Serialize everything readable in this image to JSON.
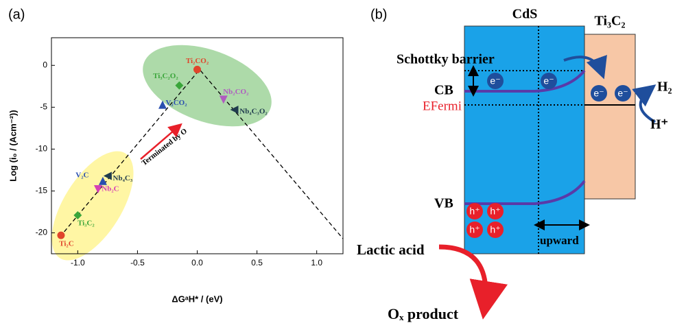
{
  "chart_data": {
    "type": "scatter",
    "panel_label": "(a)",
    "x_label": "ΔGᵃH* / (eV)",
    "y_label": "Log (i₀ / (Acm⁻²))",
    "xlim": [
      -1.22,
      1.22
    ],
    "ylim": [
      -22.5,
      3.3
    ],
    "xticks": [
      {
        "value": -1,
        "label": "-1.0"
      },
      -0.5,
      {
        "value": 0,
        "label": "0.0"
      },
      0.5,
      {
        "value": 1,
        "label": "1.0"
      }
    ],
    "yticks": [
      0,
      -5,
      -10,
      -15,
      -20
    ],
    "volcano_line": {
      "x": [
        -1.15,
        0.02,
        1.22
      ],
      "y": [
        -20.5,
        -0.5,
        -20.7
      ]
    },
    "annotation": "Terminated by O",
    "points": [
      {
        "label": "Ti₂C",
        "x": -1.14,
        "y": -20.3,
        "color": "#e0452b",
        "marker": "circle"
      },
      {
        "label": "Ti₃C₂",
        "x": -1.0,
        "y": -17.9,
        "color": "#3aa53a",
        "marker": "diamond"
      },
      {
        "label": "Nb₂C",
        "x": -0.83,
        "y": -14.8,
        "color": "#d63fb5",
        "marker": "tri-down"
      },
      {
        "label": "V₂C",
        "x": -0.79,
        "y": -13.8,
        "color": "#2a4fb0",
        "marker": "tri-up"
      },
      {
        "label": "Nb₄C₃",
        "x": -0.75,
        "y": -13.2,
        "color": "#1f3b4d",
        "marker": "tri-left"
      },
      {
        "label": "V₂CO₂",
        "x": -0.29,
        "y": -4.7,
        "color": "#2a4fb0",
        "marker": "tri-up"
      },
      {
        "label": "Ti₃C₂O₂",
        "x": -0.15,
        "y": -2.4,
        "color": "#3aa53a",
        "marker": "diamond"
      },
      {
        "label": "Ti₂CO₂",
        "x": 0.0,
        "y": -0.5,
        "color": "#e0452b",
        "marker": "circle"
      },
      {
        "label": "Nb₂CO₂",
        "x": 0.22,
        "y": -4.1,
        "color": "#b05cc0",
        "marker": "tri-down"
      },
      {
        "label": "Nb₄C₃O₂",
        "x": 0.31,
        "y": -5.3,
        "color": "#1f3b4d",
        "marker": "tri-left"
      }
    ]
  },
  "diagram": {
    "panel_label": "(b)",
    "cds": "CdS",
    "ti3c2": "Ti₃C₂",
    "schottky": "Schottky barrier",
    "cb": "CB",
    "fermi": "EFermi",
    "vb": "VB",
    "electrons": [
      "e⁻",
      "e⁻",
      "e⁻",
      "e⁻"
    ],
    "holes": [
      "h⁺",
      "h⁺",
      "h⁺",
      "h⁺"
    ],
    "h2": "H₂",
    "hplus": "H⁺",
    "upward": "upward",
    "lactic": "Lactic acid",
    "product": "Oₓ product"
  }
}
